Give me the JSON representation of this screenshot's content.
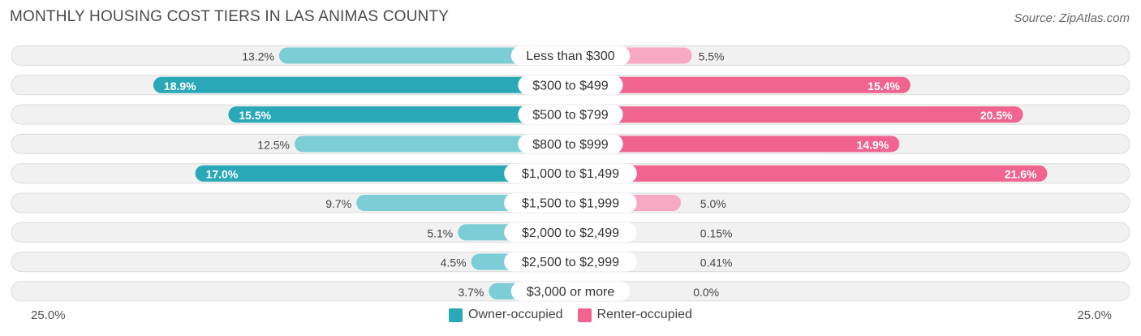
{
  "header": {
    "title": "MONTHLY HOUSING COST TIERS IN LAS ANIMAS COUNTY",
    "source": "Source: ZipAtlas.com"
  },
  "colors": {
    "owner": "#2aa8b8",
    "owner_light": "#7dcdd6",
    "renter": "#f0648f",
    "renter_light": "#f7a8c2"
  },
  "axis": {
    "left_label": "25.0%",
    "right_label": "25.0%"
  },
  "legend": {
    "owner_label": "Owner-occupied",
    "renter_label": "Renter-occupied"
  },
  "chart_data": {
    "type": "bar",
    "orientation": "horizontal-diverging",
    "title": "MONTHLY HOUSING COST TIERS IN LAS ANIMAS COUNTY",
    "xlim": [
      -25,
      25
    ],
    "categories": [
      "Less than $300",
      "$300 to $499",
      "$500 to $799",
      "$800 to $999",
      "$1,000 to $1,499",
      "$1,500 to $1,999",
      "$2,000 to $2,499",
      "$2,500 to $2,999",
      "$3,000 or more"
    ],
    "series": [
      {
        "name": "Owner-occupied",
        "values": [
          13.2,
          18.9,
          15.5,
          12.5,
          17.0,
          9.7,
          5.1,
          4.5,
          3.7
        ],
        "labels": [
          "13.2%",
          "18.9%",
          "15.5%",
          "12.5%",
          "17.0%",
          "9.7%",
          "5.1%",
          "4.5%",
          "3.7%"
        ]
      },
      {
        "name": "Renter-occupied",
        "values": [
          5.5,
          15.4,
          20.5,
          14.9,
          21.6,
          5.0,
          0.15,
          0.41,
          0.0
        ],
        "labels": [
          "5.5%",
          "15.4%",
          "20.5%",
          "14.9%",
          "21.6%",
          "5.0%",
          "0.15%",
          "0.41%",
          "0.0%"
        ]
      }
    ],
    "legend_position": "bottom-center"
  }
}
